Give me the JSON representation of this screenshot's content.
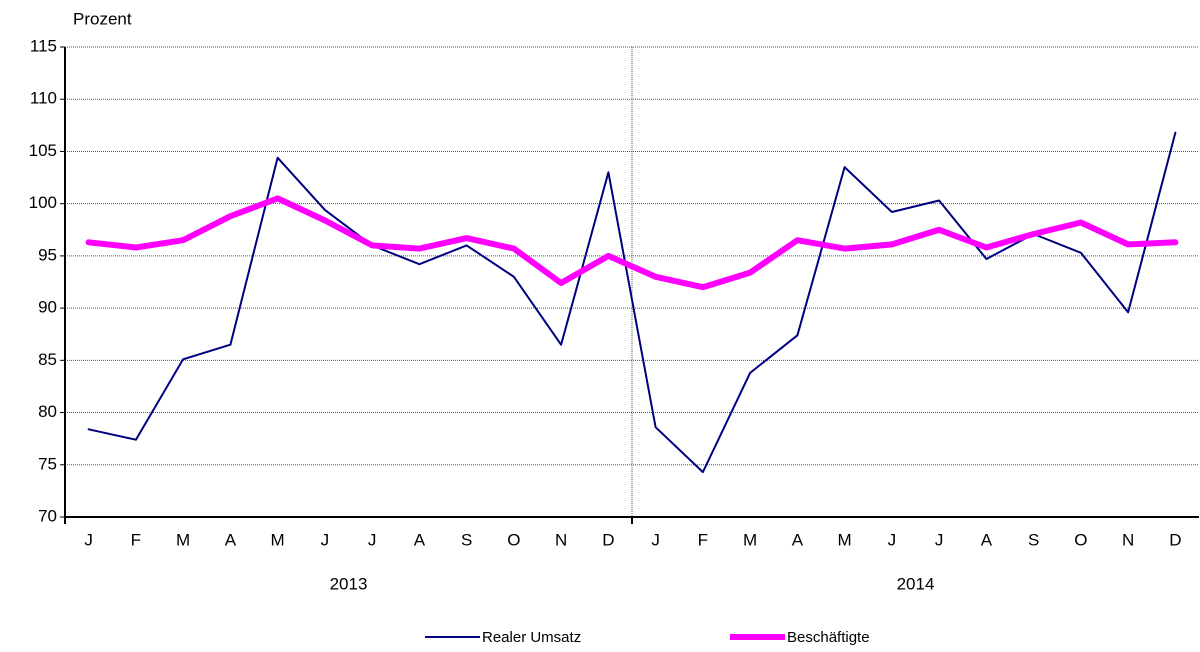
{
  "chart_data": {
    "type": "line",
    "y_label": "Prozent",
    "categories": [
      "J",
      "F",
      "M",
      "A",
      "M",
      "J",
      "J",
      "A",
      "S",
      "O",
      "N",
      "D",
      "J",
      "F",
      "M",
      "A",
      "M",
      "J",
      "J",
      "A",
      "S",
      "O",
      "N",
      "D"
    ],
    "groups": [
      "2013",
      "2014"
    ],
    "series": [
      {
        "name": "Realer Umsatz",
        "color": "#000080",
        "width": 2,
        "values": [
          78.4,
          77.4,
          85.1,
          86.5,
          104.4,
          99.4,
          96.0,
          94.2,
          96.0,
          93.0,
          86.5,
          103.0,
          78.6,
          74.3,
          83.8,
          87.4,
          103.5,
          99.2,
          100.3,
          94.7,
          97.1,
          95.3,
          89.6,
          106.8
        ]
      },
      {
        "name": "Beschäftigte",
        "color": "#ff00ff",
        "width": 6,
        "values": [
          96.3,
          95.8,
          96.5,
          98.8,
          100.5,
          98.4,
          96.0,
          95.7,
          96.7,
          95.7,
          92.4,
          95.0,
          93.0,
          92.0,
          93.4,
          96.5,
          95.7,
          96.1,
          97.5,
          95.8,
          97.1,
          98.2,
          96.1,
          96.3
        ]
      }
    ],
    "ylim": [
      70,
      115
    ],
    "yticks": [
      70,
      75,
      80,
      85,
      90,
      95,
      100,
      105,
      110,
      115
    ],
    "grid": true
  }
}
